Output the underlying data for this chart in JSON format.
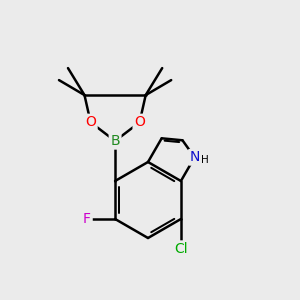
{
  "bg_color": "#ebebeb",
  "bond_color": "#000000",
  "bond_width": 1.8,
  "figsize": [
    3.0,
    3.0
  ],
  "dpi": 100,
  "atom_colors": {
    "B": "#228B22",
    "O": "#FF0000",
    "F": "#CC00CC",
    "Cl": "#00AA00",
    "N": "#1010CC",
    "H": "#000000",
    "C": "#000000"
  }
}
